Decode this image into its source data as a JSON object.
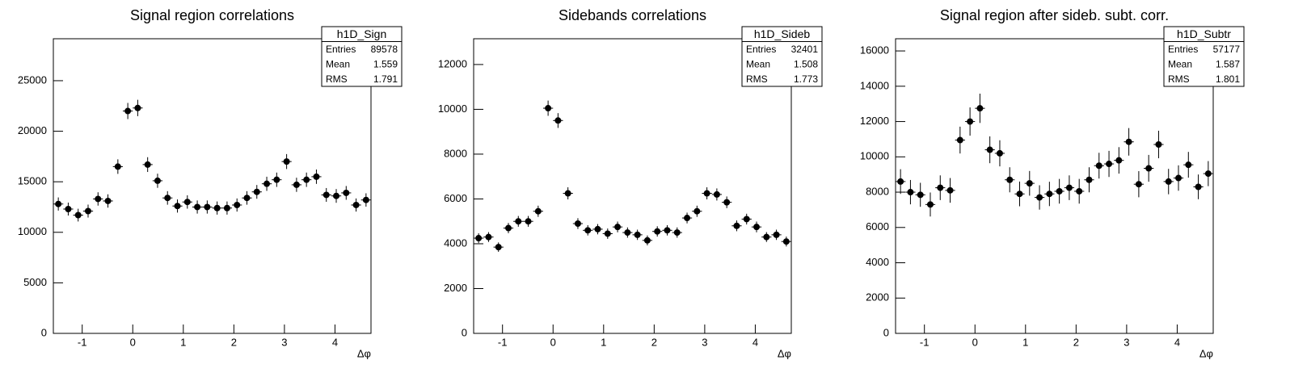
{
  "chart_data": [
    {
      "type": "histogram",
      "title": "Signal region correlations",
      "xlabel": "Δφ",
      "color": "#000000",
      "bins": [
        -1.5708,
        -1.3744,
        -1.1781,
        -0.9817,
        -0.7854,
        -0.589,
        -0.3927,
        -0.1963,
        0,
        0.1963,
        0.3927,
        0.589,
        0.7854,
        0.9817,
        1.1781,
        1.3744,
        1.5708,
        1.7671,
        1.9635,
        2.1598,
        2.3562,
        2.5525,
        2.7489,
        2.9452,
        3.1416,
        3.3379,
        3.5343,
        3.7306,
        3.927,
        4.1233,
        4.3197,
        4.516,
        4.7124
      ],
      "values": [
        12800,
        12300,
        11700,
        12100,
        13300,
        13100,
        16500,
        22000,
        22300,
        16700,
        15100,
        13400,
        12600,
        13000,
        12500,
        12500,
        12400,
        12400,
        12700,
        13400,
        14000,
        14800,
        15200,
        17000,
        14700,
        15200,
        15500,
        13700,
        13600,
        13900,
        12700,
        13200
      ],
      "errors": [
        650,
        640,
        630,
        640,
        660,
        660,
        720,
        800,
        810,
        730,
        700,
        670,
        650,
        660,
        650,
        650,
        650,
        650,
        650,
        670,
        680,
        700,
        710,
        740,
        700,
        710,
        710,
        680,
        680,
        680,
        650,
        660
      ],
      "xlim": [
        -1.5708,
        4.7124
      ],
      "ylim": [
        0,
        29150
      ],
      "xticks": [
        -1,
        0,
        1,
        2,
        3,
        4
      ],
      "yticks": [
        0,
        5000,
        10000,
        15000,
        20000,
        25000
      ],
      "stats": {
        "name": "h1D_Sign",
        "rows": [
          [
            "Entries",
            89578
          ],
          [
            "Mean",
            1.559
          ],
          [
            "RMS",
            1.791
          ]
        ]
      }
    },
    {
      "type": "histogram",
      "title": "Sidebands correlations",
      "xlabel": "Δφ",
      "color": "#000000",
      "bins": [
        -1.5708,
        -1.3744,
        -1.1781,
        -0.9817,
        -0.7854,
        -0.589,
        -0.3927,
        -0.1963,
        0,
        0.1963,
        0.3927,
        0.589,
        0.7854,
        0.9817,
        1.1781,
        1.3744,
        1.5708,
        1.7671,
        1.9635,
        2.1598,
        2.3562,
        2.5525,
        2.7489,
        2.9452,
        3.1416,
        3.3379,
        3.5343,
        3.7306,
        3.927,
        4.1233,
        4.3197,
        4.516,
        4.7124
      ],
      "values": [
        4250,
        4300,
        3850,
        4700,
        5000,
        5000,
        5450,
        10050,
        9500,
        6250,
        4900,
        4600,
        4650,
        4450,
        4750,
        4500,
        4400,
        4150,
        4550,
        4600,
        4500,
        5150,
        5450,
        6250,
        6200,
        5850,
        4800,
        5100,
        4750,
        4300,
        4400,
        4100
      ],
      "errors": [
        220,
        220,
        210,
        230,
        240,
        240,
        250,
        340,
        330,
        270,
        240,
        230,
        230,
        230,
        240,
        230,
        230,
        220,
        230,
        230,
        230,
        240,
        250,
        270,
        270,
        260,
        240,
        240,
        240,
        220,
        230,
        220
      ],
      "xlim": [
        -1.5708,
        4.7124
      ],
      "ylim": [
        0,
        13150
      ],
      "xticks": [
        -1,
        0,
        1,
        2,
        3,
        4
      ],
      "yticks": [
        0,
        2000,
        4000,
        6000,
        8000,
        10000,
        12000
      ],
      "stats": {
        "name": "h1D_Sideb",
        "rows": [
          [
            "Entries",
            32401
          ],
          [
            "Mean",
            1.508
          ],
          [
            "RMS",
            1.773
          ]
        ]
      }
    },
    {
      "type": "histogram",
      "title": "Signal region after sideb. subt. corr.",
      "xlabel": "Δφ",
      "color": "#000000",
      "bins": [
        -1.5708,
        -1.3744,
        -1.1781,
        -0.9817,
        -0.7854,
        -0.589,
        -0.3927,
        -0.1963,
        0,
        0.1963,
        0.3927,
        0.589,
        0.7854,
        0.9817,
        1.1781,
        1.3744,
        1.5708,
        1.7671,
        1.9635,
        2.1598,
        2.3562,
        2.5525,
        2.7489,
        2.9452,
        3.1416,
        3.3379,
        3.5343,
        3.7306,
        3.927,
        4.1233,
        4.3197,
        4.516,
        4.7124
      ],
      "values": [
        8600,
        8000,
        7850,
        7300,
        8250,
        8100,
        10950,
        12000,
        12750,
        10400,
        10200,
        8700,
        7900,
        8500,
        7700,
        7900,
        8050,
        8250,
        8050,
        8700,
        9500,
        9600,
        9800,
        10850,
        8450,
        9350,
        10700,
        8600,
        8800,
        9550,
        8300,
        9050
      ],
      "errors": [
        700,
        690,
        680,
        680,
        700,
        700,
        760,
        800,
        830,
        760,
        740,
        710,
        700,
        700,
        690,
        690,
        700,
        700,
        700,
        710,
        730,
        740,
        750,
        780,
        740,
        760,
        780,
        720,
        720,
        730,
        700,
        710
      ],
      "xlim": [
        -1.5708,
        4.7124
      ],
      "ylim": [
        0,
        16690
      ],
      "xticks": [
        -1,
        0,
        1,
        2,
        3,
        4
      ],
      "yticks": [
        0,
        2000,
        4000,
        6000,
        8000,
        10000,
        12000,
        14000,
        16000
      ],
      "stats": {
        "name": "h1D_Subtr",
        "rows": [
          [
            "Entries",
            57177
          ],
          [
            "Mean",
            1.587
          ],
          [
            "RMS",
            1.801
          ]
        ]
      }
    }
  ]
}
